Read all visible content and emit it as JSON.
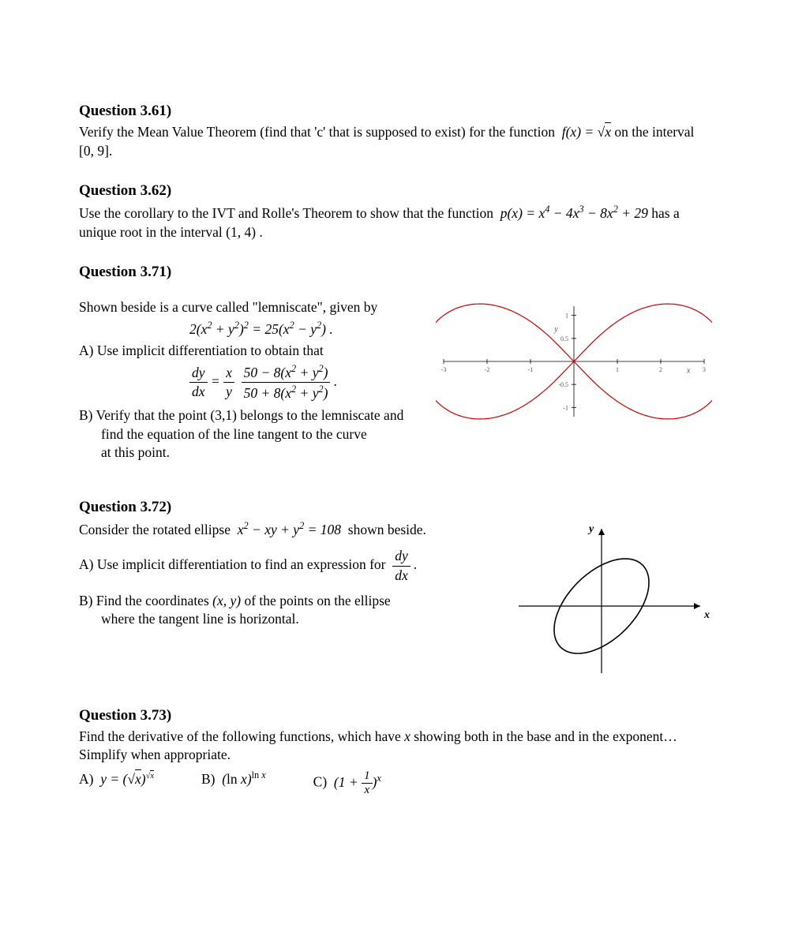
{
  "q361": {
    "title": "Question 3.61)",
    "body_prefix": "Verify the Mean Value Theorem (find that 'c' that is supposed to exist) for the function",
    "func_label": "f(x) = √x",
    "body_suffix": " on the interval [0, 9]."
  },
  "q362": {
    "title": "Question 3.62)",
    "body_prefix": "Use the corollary to the IVT and Rolle's Theorem to show that the function",
    "func_label": "p(x) = x⁴ − 4x³ − 8x² + 29",
    "body_suffix": "has a unique root in the interval (1, 4) ."
  },
  "q371": {
    "title": "Question 3.71)",
    "intro": "Shown beside is a curve called \"lemniscate\", given by",
    "curve_eq": "2(x² + y²)² = 25(x² − y²) .",
    "partA_text": "A)  Use implicit differentiation to obtain that",
    "deriv_full": "dy/dx = (x/y) · (50 − 8(x² + y²)) / (50 + 8(x² + y²)) .",
    "partB_text1": "B)  Verify that the point (3,1) belongs to the lemniscate and",
    "partB_text2": "find the equation of the line tangent to the curve",
    "partB_text3": "at this point.",
    "graph": {
      "xmin": -3,
      "xmax": 3,
      "ymin": -1.2,
      "ymax": 1.2,
      "xticks": [
        -3,
        -2,
        -1,
        0,
        1,
        2,
        3
      ],
      "yticks": [
        -1,
        -0.5,
        0,
        0.5,
        1
      ],
      "curve_color": "#cc0000",
      "axis_color": "#000",
      "bg": "#fff",
      "label_color": "#555",
      "font_size": 8,
      "axis_label_x": "x",
      "axis_label_y": "y"
    }
  },
  "q372": {
    "title": "Question 3.72)",
    "intro": "Consider the rotated ellipse  x² − xy + y² = 108  shown beside.",
    "partA": "A)  Use implicit differentiation to find an expression for",
    "partA_frac_label": "dy/dx",
    "partB_text1": "B)  Find the coordinates (x, y) of the points on the ellipse",
    "partB_text2": "where the tangent line is horizontal.",
    "graph": {
      "axis_color": "#000",
      "curve_color": "#000",
      "bg": "#fff",
      "axis_label_x": "x",
      "axis_label_y": "y"
    }
  },
  "q373": {
    "title": "Question 3.73)",
    "body": "Find the derivative of the following functions, which have x showing both in the base and in the exponent…   Simplify when appropriate.",
    "partA_label": "A)",
    "partA_expr": "y = (√x)^(√x)",
    "partB_label": "B)",
    "partB_expr": "(ln x)^(ln x)",
    "partC_label": "C)",
    "partC_expr": "(1 + 1/x)^x"
  }
}
